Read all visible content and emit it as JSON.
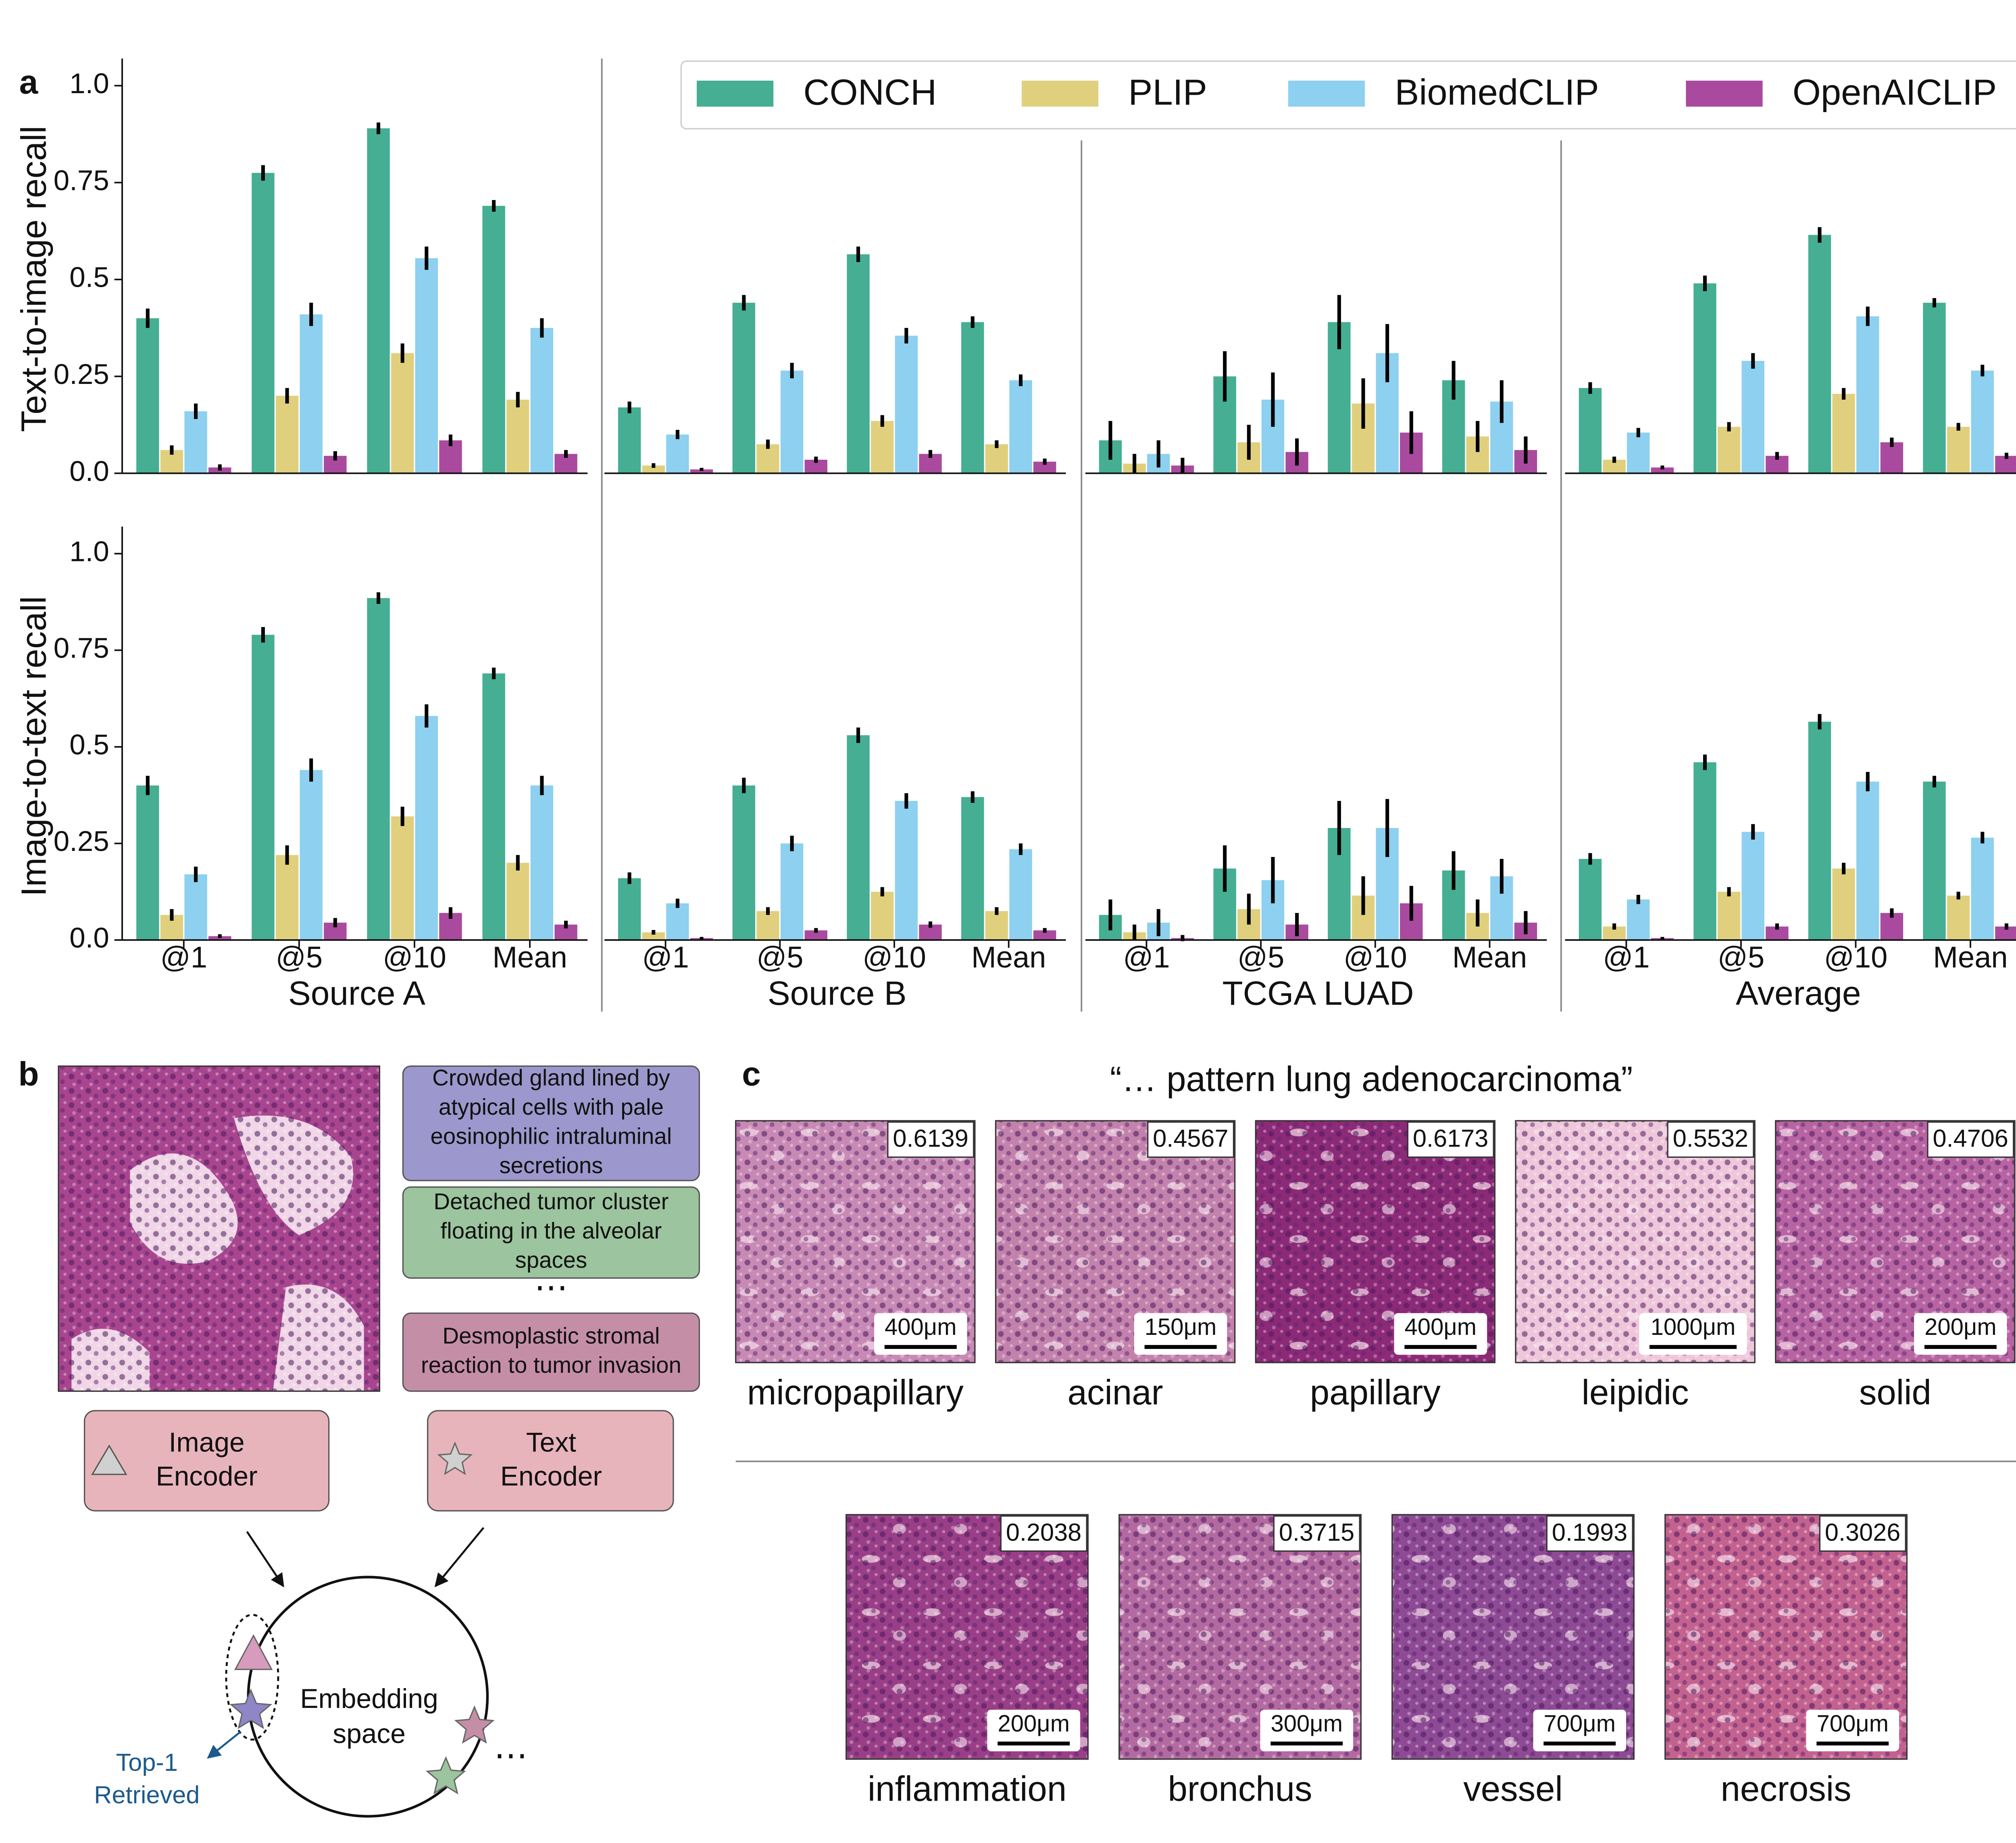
{
  "panel_labels": [
    "a",
    "b",
    "c"
  ],
  "legend": {
    "series": [
      {
        "name": "CONCH",
        "color": "#45ae93"
      },
      {
        "name": "PLIP",
        "color": "#e0d07e"
      },
      {
        "name": "BiomedCLIP",
        "color": "#8dd0f0"
      },
      {
        "name": "OpenAICLIP",
        "color": "#a94a9e"
      }
    ]
  },
  "chart_data": [
    {
      "type": "bar",
      "ylabel": "Text-to-image recall",
      "ylim": [
        0,
        1.07
      ],
      "yticks": [
        {
          "value": 0,
          "label": "0.0"
        },
        0.25,
        0.5,
        0.75,
        {
          "value": 1,
          "label": "1.0"
        }
      ],
      "series": [
        {
          "values": [
            0.4,
            0.775,
            0.89,
            0.69
          ],
          "errors": [
            0.025,
            0.02,
            0.015,
            0.015
          ]
        },
        {
          "values": [
            0.06,
            0.2,
            0.31,
            0.19
          ],
          "errors": [
            0.012,
            0.02,
            0.025,
            0.02
          ]
        },
        {
          "values": [
            0.16,
            0.41,
            0.555,
            0.375
          ],
          "errors": [
            0.02,
            0.03,
            0.03,
            0.025
          ]
        },
        {
          "values": [
            0.015,
            0.045,
            0.085,
            0.05
          ],
          "errors": [
            0.008,
            0.012,
            0.015,
            0.01
          ]
        }
      ]
    },
    {
      "type": "bar",
      "ylim": [
        0,
        1.07
      ],
      "series": [
        {
          "values": [
            0.17,
            0.44,
            0.565,
            0.39
          ],
          "errors": [
            0.015,
            0.02,
            0.02,
            0.015
          ]
        },
        {
          "values": [
            0.02,
            0.075,
            0.135,
            0.075
          ],
          "errors": [
            0.006,
            0.012,
            0.015,
            0.01
          ]
        },
        {
          "values": [
            0.1,
            0.265,
            0.355,
            0.24
          ],
          "errors": [
            0.012,
            0.02,
            0.02,
            0.015
          ]
        },
        {
          "values": [
            0.01,
            0.035,
            0.05,
            0.03
          ],
          "errors": [
            0.004,
            0.008,
            0.01,
            0.008
          ]
        }
      ]
    },
    {
      "type": "bar",
      "ylim": [
        0,
        1.07
      ],
      "series": [
        {
          "values": [
            0.085,
            0.25,
            0.39,
            0.24
          ],
          "errors": [
            0.05,
            0.065,
            0.07,
            0.05
          ]
        },
        {
          "values": [
            0.025,
            0.08,
            0.18,
            0.095
          ],
          "errors": [
            0.025,
            0.045,
            0.065,
            0.04
          ]
        },
        {
          "values": [
            0.05,
            0.19,
            0.31,
            0.185
          ],
          "errors": [
            0.035,
            0.07,
            0.075,
            0.055
          ]
        },
        {
          "values": [
            0.02,
            0.055,
            0.105,
            0.06
          ],
          "errors": [
            0.02,
            0.035,
            0.055,
            0.035
          ]
        }
      ]
    },
    {
      "type": "bar",
      "ylim": [
        0,
        1.07
      ],
      "series": [
        {
          "values": [
            0.22,
            0.49,
            0.615,
            0.44
          ],
          "errors": [
            0.015,
            0.02,
            0.02,
            0.012
          ]
        },
        {
          "values": [
            0.035,
            0.12,
            0.205,
            0.12
          ],
          "errors": [
            0.008,
            0.012,
            0.015,
            0.01
          ]
        },
        {
          "values": [
            0.105,
            0.29,
            0.405,
            0.265
          ],
          "errors": [
            0.012,
            0.02,
            0.025,
            0.015
          ]
        },
        {
          "values": [
            0.015,
            0.045,
            0.08,
            0.045
          ],
          "errors": [
            0.005,
            0.01,
            0.012,
            0.008
          ]
        }
      ]
    },
    {
      "type": "bar",
      "ylabel": "Image-to-text recall",
      "ylim": [
        0,
        1.07
      ],
      "yticks": [
        {
          "value": 0,
          "label": "0.0"
        },
        0.25,
        0.5,
        0.75,
        {
          "value": 1,
          "label": "1.0"
        }
      ],
      "categories": [
        "@1",
        "@5",
        "@10",
        "Mean"
      ],
      "xlabel": "Source A",
      "series": [
        {
          "values": [
            0.4,
            0.79,
            0.885,
            0.69
          ],
          "errors": [
            0.025,
            0.02,
            0.015,
            0.015
          ]
        },
        {
          "values": [
            0.065,
            0.22,
            0.32,
            0.2
          ],
          "errors": [
            0.015,
            0.025,
            0.025,
            0.02
          ]
        },
        {
          "values": [
            0.17,
            0.44,
            0.58,
            0.4
          ],
          "errors": [
            0.02,
            0.03,
            0.03,
            0.025
          ]
        },
        {
          "values": [
            0.01,
            0.045,
            0.07,
            0.04
          ],
          "errors": [
            0.005,
            0.012,
            0.015,
            0.01
          ]
        }
      ]
    },
    {
      "type": "bar",
      "ylim": [
        0,
        1.07
      ],
      "categories": [
        "@1",
        "@5",
        "@10",
        "Mean"
      ],
      "xlabel": "Source B",
      "series": [
        {
          "values": [
            0.16,
            0.4,
            0.53,
            0.37
          ],
          "errors": [
            0.015,
            0.02,
            0.02,
            0.015
          ]
        },
        {
          "values": [
            0.02,
            0.075,
            0.125,
            0.075
          ],
          "errors": [
            0.006,
            0.01,
            0.012,
            0.01
          ]
        },
        {
          "values": [
            0.095,
            0.25,
            0.36,
            0.235
          ],
          "errors": [
            0.012,
            0.02,
            0.02,
            0.015
          ]
        },
        {
          "values": [
            0.005,
            0.025,
            0.04,
            0.025
          ],
          "errors": [
            0.003,
            0.006,
            0.008,
            0.006
          ]
        }
      ]
    },
    {
      "type": "bar",
      "ylim": [
        0,
        1.07
      ],
      "categories": [
        "@1",
        "@5",
        "@10",
        "Mean"
      ],
      "xlabel": "TCGA LUAD",
      "series": [
        {
          "values": [
            0.065,
            0.185,
            0.29,
            0.18
          ],
          "errors": [
            0.04,
            0.06,
            0.07,
            0.05
          ]
        },
        {
          "values": [
            0.02,
            0.08,
            0.115,
            0.07
          ],
          "errors": [
            0.02,
            0.04,
            0.05,
            0.035
          ]
        },
        {
          "values": [
            0.045,
            0.155,
            0.29,
            0.165
          ],
          "errors": [
            0.035,
            0.06,
            0.075,
            0.045
          ]
        },
        {
          "values": [
            0.005,
            0.04,
            0.095,
            0.045
          ],
          "errors": [
            0.008,
            0.03,
            0.045,
            0.03
          ]
        }
      ]
    },
    {
      "type": "bar",
      "ylim": [
        0,
        1.07
      ],
      "categories": [
        "@1",
        "@5",
        "@10",
        "Mean"
      ],
      "xlabel": "Average",
      "series": [
        {
          "values": [
            0.21,
            0.46,
            0.565,
            0.41
          ],
          "errors": [
            0.015,
            0.02,
            0.02,
            0.015
          ]
        },
        {
          "values": [
            0.035,
            0.125,
            0.185,
            0.115
          ],
          "errors": [
            0.008,
            0.012,
            0.015,
            0.01
          ]
        },
        {
          "values": [
            0.105,
            0.28,
            0.41,
            0.265
          ],
          "errors": [
            0.012,
            0.02,
            0.025,
            0.015
          ]
        },
        {
          "values": [
            0.005,
            0.035,
            0.07,
            0.035
          ],
          "errors": [
            0.003,
            0.008,
            0.012,
            0.008
          ]
        }
      ]
    }
  ],
  "panel_b": {
    "text_boxes": [
      [
        "Crowded gland lined by",
        "atypical cells with pale",
        "eosinophilic intraluminal",
        "secretions"
      ],
      [
        "Detached tumor cluster",
        "floating in the alveolar",
        "spaces"
      ],
      [
        "Desmoplastic stromal",
        "reaction to tumor invasion"
      ]
    ],
    "ellipses": [
      "⋯",
      "⋯"
    ],
    "image_encoder": [
      "Image",
      "Encoder"
    ],
    "text_encoder": [
      "Text",
      "Encoder"
    ],
    "embedding_space": [
      "Embedding",
      "space"
    ],
    "retrieved": [
      "Top-1",
      "Retrieved"
    ]
  },
  "panel_c": {
    "title": "“… pattern lung adenocarcinoma”",
    "rows": [
      [
        {
          "score": 0.6139,
          "scale_bar": "400μm",
          "label": "micropapillary"
        },
        {
          "score": 0.4567,
          "scale_bar": "150μm",
          "label": "acinar"
        },
        {
          "score": 0.6173,
          "scale_bar": "400μm",
          "label": "papillary"
        },
        {
          "score": 0.5532,
          "scale_bar": "1000μm",
          "label": "leipidic"
        },
        {
          "score": 0.4706,
          "scale_bar": "200μm",
          "label": "solid"
        }
      ],
      [
        {
          "score": 0.2038,
          "scale_bar": "200μm",
          "label": "inflammation"
        },
        {
          "score": 0.3715,
          "scale_bar": "300μm",
          "label": "bronchus"
        },
        {
          "score": 0.1993,
          "scale_bar": "700μm",
          "label": "vessel"
        },
        {
          "score": 0.3026,
          "scale_bar": "700μm",
          "label": "necrosis"
        }
      ]
    ]
  }
}
